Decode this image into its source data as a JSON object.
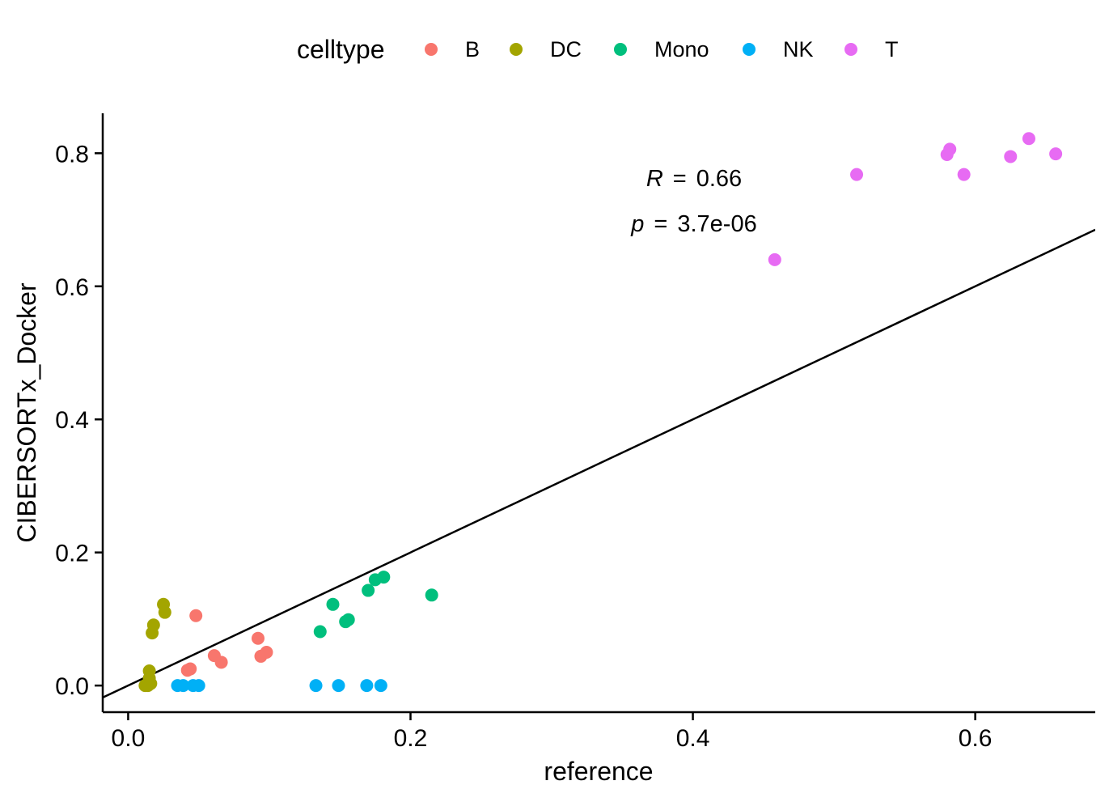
{
  "chart_data": {
    "type": "scatter",
    "xlabel": "reference",
    "ylabel": "CIBERSORTx_Docker",
    "xlim": [
      -0.018,
      0.685
    ],
    "ylim": [
      -0.04,
      0.86
    ],
    "x_ticks": [
      0.0,
      0.2,
      0.4,
      0.6
    ],
    "x_tick_labels": [
      "0.0",
      "0.2",
      "0.4",
      "0.6"
    ],
    "y_ticks": [
      0.0,
      0.2,
      0.4,
      0.6,
      0.8
    ],
    "y_tick_labels": [
      "0.0",
      "0.2",
      "0.4",
      "0.6",
      "0.8"
    ],
    "grid": false,
    "legend": {
      "title": "celltype",
      "placement": "top"
    },
    "annotation": {
      "r_symbol": "R",
      "r_eq": "=",
      "r_value": "0.66",
      "p_symbol": "p",
      "p_eq": "=",
      "p_value": "3.7e-06"
    },
    "reference_line": {
      "slope": 1.0,
      "intercept": 0.0,
      "color": "#000000"
    },
    "series": [
      {
        "name": "B",
        "color": "#F8766D",
        "points": [
          [
            0.048,
            0.105
          ],
          [
            0.042,
            0.023
          ],
          [
            0.044,
            0.025
          ],
          [
            0.061,
            0.045
          ],
          [
            0.066,
            0.035
          ],
          [
            0.092,
            0.071
          ],
          [
            0.094,
            0.044
          ],
          [
            0.098,
            0.05
          ]
        ]
      },
      {
        "name": "DC",
        "color": "#A3A500",
        "points": [
          [
            0.012,
            0.0
          ],
          [
            0.014,
            0.0
          ],
          [
            0.016,
            0.003
          ],
          [
            0.015,
            0.011
          ],
          [
            0.015,
            0.022
          ],
          [
            0.017,
            0.079
          ],
          [
            0.018,
            0.091
          ],
          [
            0.025,
            0.122
          ],
          [
            0.026,
            0.11
          ]
        ]
      },
      {
        "name": "Mono",
        "color": "#00BF7D",
        "points": [
          [
            0.136,
            0.081
          ],
          [
            0.145,
            0.122
          ],
          [
            0.154,
            0.096
          ],
          [
            0.156,
            0.099
          ],
          [
            0.17,
            0.143
          ],
          [
            0.175,
            0.159
          ],
          [
            0.181,
            0.163
          ],
          [
            0.215,
            0.136
          ]
        ]
      },
      {
        "name": "NK",
        "color": "#00B0F6",
        "points": [
          [
            0.035,
            0.0
          ],
          [
            0.039,
            0.0
          ],
          [
            0.046,
            0.0
          ],
          [
            0.05,
            0.0
          ],
          [
            0.133,
            0.0
          ],
          [
            0.149,
            0.0
          ],
          [
            0.169,
            0.0
          ],
          [
            0.179,
            0.0
          ]
        ]
      },
      {
        "name": "T",
        "color": "#E76BF3",
        "points": [
          [
            0.458,
            0.64
          ],
          [
            0.516,
            0.768
          ],
          [
            0.58,
            0.798
          ],
          [
            0.582,
            0.806
          ],
          [
            0.592,
            0.768
          ],
          [
            0.625,
            0.795
          ],
          [
            0.638,
            0.822
          ],
          [
            0.657,
            0.799
          ]
        ]
      }
    ]
  }
}
